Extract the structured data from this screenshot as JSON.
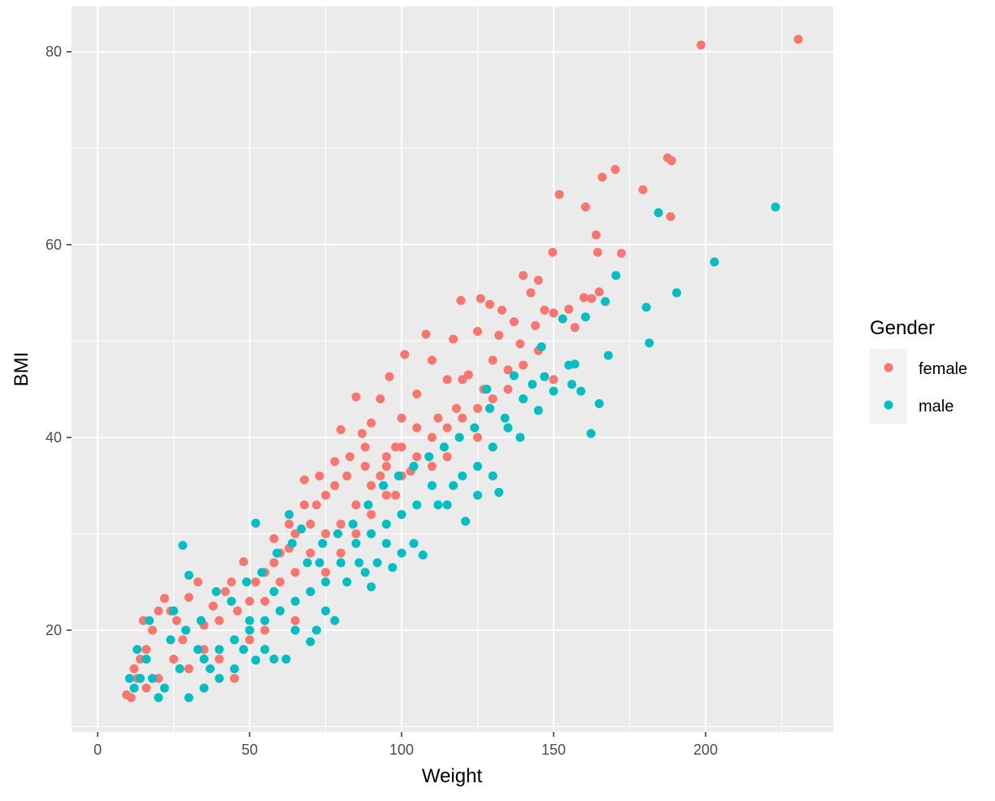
{
  "chart_data": {
    "type": "scatter",
    "xlabel": "Weight",
    "ylabel": "BMI",
    "xlim": [
      -8.6,
      242
    ],
    "ylim": [
      9.45,
      84.7
    ],
    "x_ticks": [
      "0",
      "50",
      "100",
      "150",
      "200"
    ],
    "y_ticks": [
      "20",
      "40",
      "60",
      "80"
    ],
    "grid": true,
    "legend": {
      "title": "Gender",
      "position": "right"
    },
    "series": [
      {
        "name": "female",
        "color": "#F8766D",
        "points": [
          [
            230.5,
            81.3
          ],
          [
            198.5,
            80.7
          ],
          [
            187.5,
            69
          ],
          [
            188.8,
            68.7
          ],
          [
            170.3,
            67.8
          ],
          [
            166,
            67
          ],
          [
            151.9,
            65.2
          ],
          [
            179.4,
            65.7
          ],
          [
            160.5,
            63.9
          ],
          [
            188.5,
            62.9
          ],
          [
            164,
            61
          ],
          [
            149.7,
            59.2
          ],
          [
            164.5,
            59.2
          ],
          [
            172.3,
            59.1
          ],
          [
            165,
            55.1
          ],
          [
            162.5,
            54.4
          ],
          [
            140,
            56.8
          ],
          [
            145,
            56.3
          ],
          [
            142.5,
            55
          ],
          [
            147,
            53.2
          ],
          [
            144,
            51.6
          ],
          [
            150,
            52.9
          ],
          [
            155,
            53.3
          ],
          [
            157,
            51.4
          ],
          [
            160,
            54.5
          ],
          [
            137,
            52
          ],
          [
            133,
            53.2
          ],
          [
            129,
            53.8
          ],
          [
            126,
            54.4
          ],
          [
            119.5,
            54.2
          ],
          [
            132,
            50.6
          ],
          [
            139,
            49.7
          ],
          [
            145,
            49
          ],
          [
            125,
            51
          ],
          [
            117,
            50.2
          ],
          [
            108,
            50.7
          ],
          [
            101,
            48.6
          ],
          [
            110,
            48
          ],
          [
            96,
            46.3
          ],
          [
            93,
            44
          ],
          [
            85,
            44.2
          ],
          [
            90,
            41.5
          ],
          [
            80,
            40.8
          ],
          [
            87,
            40.4
          ],
          [
            100,
            42
          ],
          [
            105,
            44.5
          ],
          [
            115,
            46
          ],
          [
            120,
            46
          ],
          [
            118,
            43
          ],
          [
            127,
            45
          ],
          [
            135,
            47
          ],
          [
            140,
            47.5
          ],
          [
            150,
            46
          ],
          [
            112,
            42
          ],
          [
            98,
            39
          ],
          [
            95,
            38
          ],
          [
            88,
            37
          ],
          [
            82,
            36
          ],
          [
            78,
            35
          ],
          [
            75,
            34
          ],
          [
            72,
            33
          ],
          [
            68,
            35.6
          ],
          [
            70,
            31
          ],
          [
            65,
            30
          ],
          [
            63,
            28.5
          ],
          [
            60,
            28
          ],
          [
            58,
            27
          ],
          [
            55,
            26
          ],
          [
            52,
            25
          ],
          [
            48,
            27.1
          ],
          [
            50,
            23
          ],
          [
            46,
            22
          ],
          [
            44,
            25
          ],
          [
            42,
            24
          ],
          [
            40,
            21
          ],
          [
            38,
            22.5
          ],
          [
            35,
            20.5
          ],
          [
            33,
            25
          ],
          [
            30,
            23.4
          ],
          [
            28,
            19
          ],
          [
            26,
            21
          ],
          [
            24,
            22
          ],
          [
            22,
            23.3
          ],
          [
            20,
            22
          ],
          [
            18,
            20
          ],
          [
            16,
            18
          ],
          [
            15,
            21
          ],
          [
            14,
            17
          ],
          [
            13,
            15
          ],
          [
            11,
            13
          ],
          [
            12,
            16
          ],
          [
            9.5,
            13.3
          ],
          [
            16,
            14
          ],
          [
            20,
            15
          ],
          [
            25,
            17
          ],
          [
            30,
            16
          ],
          [
            35,
            18
          ],
          [
            40,
            17
          ],
          [
            45,
            15
          ],
          [
            50,
            19
          ],
          [
            55,
            20
          ],
          [
            60,
            22
          ],
          [
            65,
            21
          ],
          [
            70,
            24
          ],
          [
            75,
            26
          ],
          [
            80,
            28
          ],
          [
            85,
            30
          ],
          [
            90,
            32
          ],
          [
            95,
            34
          ],
          [
            100,
            36
          ],
          [
            105,
            38
          ],
          [
            110,
            40
          ],
          [
            115,
            41
          ],
          [
            120,
            42
          ],
          [
            125,
            43
          ],
          [
            130,
            44
          ],
          [
            135,
            45
          ],
          [
            90,
            35
          ],
          [
            85,
            33
          ],
          [
            80,
            31
          ],
          [
            75,
            30
          ],
          [
            70,
            28
          ],
          [
            65,
            26
          ],
          [
            60,
            25
          ],
          [
            55,
            23
          ],
          [
            100,
            39
          ],
          [
            105,
            41
          ],
          [
            95,
            37
          ],
          [
            110,
            37
          ],
          [
            115,
            38
          ],
          [
            125,
            40
          ],
          [
            130,
            48
          ],
          [
            122,
            46.5
          ],
          [
            103,
            36.5
          ],
          [
            98,
            34
          ],
          [
            93,
            36
          ],
          [
            88,
            39
          ],
          [
            83,
            38
          ],
          [
            78,
            37.5
          ],
          [
            73,
            36
          ],
          [
            68,
            33
          ],
          [
            63,
            31
          ],
          [
            58,
            29.5
          ]
        ]
      },
      {
        "name": "male",
        "color": "#00BFC4",
        "points": [
          [
            223,
            63.9
          ],
          [
            184.5,
            63.3
          ],
          [
            202.9,
            58.2
          ],
          [
            170.5,
            56.8
          ],
          [
            190.5,
            55
          ],
          [
            180.5,
            53.5
          ],
          [
            181.5,
            49.8
          ],
          [
            167,
            54.1
          ],
          [
            162.3,
            40.4
          ],
          [
            165,
            43.5
          ],
          [
            168,
            48.5
          ],
          [
            160.5,
            52.5
          ],
          [
            153,
            52.3
          ],
          [
            155,
            47.5
          ],
          [
            157,
            47.6
          ],
          [
            159,
            44.8
          ],
          [
            156,
            45.5
          ],
          [
            146,
            49.4
          ],
          [
            147,
            46.3
          ],
          [
            150,
            44.8
          ],
          [
            145,
            42.8
          ],
          [
            140,
            44
          ],
          [
            135,
            41
          ],
          [
            132,
            34.3
          ],
          [
            130,
            39
          ],
          [
            125,
            37
          ],
          [
            121,
            31.3
          ],
          [
            117,
            35
          ],
          [
            112,
            33
          ],
          [
            107,
            27.8
          ],
          [
            104,
            29
          ],
          [
            100,
            28
          ],
          [
            95,
            29
          ],
          [
            90,
            24.5
          ],
          [
            86,
            27
          ],
          [
            82,
            25
          ],
          [
            78,
            21
          ],
          [
            75,
            22
          ],
          [
            72,
            20
          ],
          [
            70,
            18.8
          ],
          [
            65,
            20
          ],
          [
            62,
            17
          ],
          [
            58,
            17
          ],
          [
            55,
            18
          ],
          [
            52,
            16.9
          ],
          [
            52,
            31.1
          ],
          [
            50,
            21
          ],
          [
            48,
            18
          ],
          [
            45,
            16
          ],
          [
            40,
            15
          ],
          [
            37,
            16
          ],
          [
            35,
            14
          ],
          [
            33,
            18
          ],
          [
            30,
            13
          ],
          [
            28,
            28.8
          ],
          [
            30,
            25.7
          ],
          [
            27,
            16
          ],
          [
            25,
            22
          ],
          [
            22,
            14
          ],
          [
            20,
            13
          ],
          [
            18,
            15
          ],
          [
            16,
            17
          ],
          [
            14,
            15
          ],
          [
            12,
            14
          ],
          [
            10.5,
            15
          ],
          [
            13,
            18
          ],
          [
            17,
            21
          ],
          [
            24,
            19
          ],
          [
            29,
            20
          ],
          [
            34,
            21
          ],
          [
            39,
            24
          ],
          [
            44,
            23
          ],
          [
            49,
            25
          ],
          [
            54,
            26
          ],
          [
            59,
            28
          ],
          [
            64,
            29
          ],
          [
            69,
            27
          ],
          [
            74,
            29
          ],
          [
            79,
            30
          ],
          [
            84,
            31
          ],
          [
            89,
            33
          ],
          [
            94,
            35
          ],
          [
            99,
            36
          ],
          [
            104,
            37
          ],
          [
            109,
            38
          ],
          [
            114,
            39
          ],
          [
            119,
            40
          ],
          [
            124,
            41
          ],
          [
            129,
            43
          ],
          [
            134,
            42
          ],
          [
            139,
            40
          ],
          [
            143,
            45.5
          ],
          [
            137,
            46.4
          ],
          [
            128,
            45
          ],
          [
            110,
            35
          ],
          [
            105,
            33
          ],
          [
            100,
            32
          ],
          [
            95,
            31
          ],
          [
            90,
            30
          ],
          [
            85,
            29
          ],
          [
            80,
            27
          ],
          [
            75,
            25
          ],
          [
            70,
            24
          ],
          [
            65,
            23
          ],
          [
            60,
            22
          ],
          [
            55,
            21
          ],
          [
            50,
            20
          ],
          [
            45,
            19
          ],
          [
            40,
            18
          ],
          [
            35,
            17
          ],
          [
            115,
            33
          ],
          [
            120,
            36
          ],
          [
            125,
            34
          ],
          [
            130,
            36
          ],
          [
            92,
            27
          ],
          [
            88,
            26
          ],
          [
            97,
            26.5
          ],
          [
            63,
            32
          ],
          [
            67,
            30.5
          ],
          [
            73,
            27
          ],
          [
            58,
            24
          ]
        ]
      }
    ]
  }
}
